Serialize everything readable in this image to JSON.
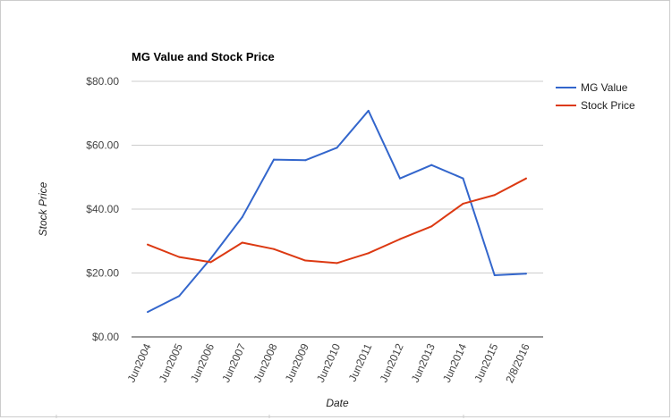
{
  "chart_data": {
    "type": "line",
    "title": "MG Value and Stock Price",
    "xlabel": "Date",
    "ylabel": "Stock Price",
    "ylim": [
      0,
      80
    ],
    "yticks": [
      {
        "value": 0,
        "label": "$0.00"
      },
      {
        "value": 20,
        "label": "$20.00"
      },
      {
        "value": 40,
        "label": "$40.00"
      },
      {
        "value": 60,
        "label": "$60.00"
      },
      {
        "value": 80,
        "label": "$80.00"
      }
    ],
    "grid": true,
    "legend_position": "right",
    "categories": [
      "Jun2004",
      "Jun2005",
      "Jun2006",
      "Jun2007",
      "Jun2008",
      "Jun2009",
      "Jun2010",
      "Jun2011",
      "Jun2012",
      "Jun2013",
      "Jun2014",
      "Jun2015",
      "2/8/2016"
    ],
    "series": [
      {
        "name": "MG Value",
        "color": "#3366cc",
        "values": [
          7.8,
          12.8,
          24.5,
          37.5,
          55.5,
          55.3,
          59.2,
          70.8,
          49.6,
          53.8,
          49.6,
          19.3,
          19.8
        ]
      },
      {
        "name": "Stock Price",
        "color": "#dc3912",
        "values": [
          28.9,
          25.0,
          23.4,
          29.5,
          27.5,
          23.9,
          23.1,
          26.2,
          30.6,
          34.6,
          41.7,
          44.4,
          49.6
        ]
      }
    ]
  }
}
